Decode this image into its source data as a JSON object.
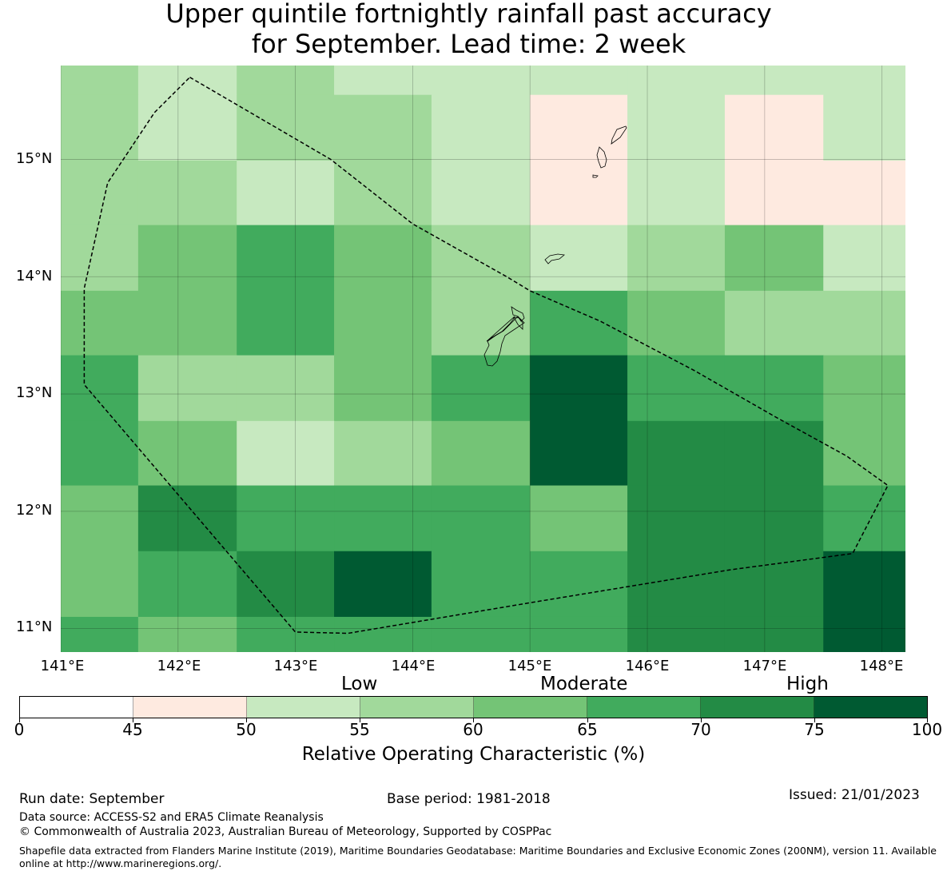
{
  "title": {
    "line1": "Upper quintile fortnightly rainfall past accuracy",
    "line2": "for September. Lead time: 2 week"
  },
  "map": {
    "lon_labels": [
      "141°E",
      "142°E",
      "143°E",
      "144°E",
      "145°E",
      "146°E",
      "147°E",
      "148°E"
    ],
    "lat_labels": [
      "15°N",
      "14°N",
      "13°N",
      "12°N",
      "11°N"
    ],
    "lon_range": [
      141.0,
      148.2
    ],
    "lat_range": [
      10.8,
      15.8
    ],
    "grid_lon_edges": [
      141.0,
      141.66,
      142.5,
      143.33,
      144.16,
      145.0,
      145.83,
      146.66,
      147.5,
      148.2
    ],
    "grid_lat_edges": [
      15.8,
      15.55,
      14.99,
      14.44,
      13.88,
      13.33,
      12.77,
      12.22,
      11.66,
      11.1,
      10.8
    ],
    "roc_cells": [
      [
        57,
        52,
        57,
        52,
        52,
        52,
        52,
        52,
        52
      ],
      [
        57,
        52,
        57,
        57,
        52,
        47,
        52,
        47,
        52
      ],
      [
        57,
        57,
        52,
        57,
        52,
        47,
        52,
        47,
        47
      ],
      [
        57,
        62,
        67,
        62,
        57,
        52,
        57,
        62,
        52
      ],
      [
        62,
        62,
        67,
        62,
        57,
        67,
        62,
        57,
        57
      ],
      [
        67,
        57,
        57,
        62,
        67,
        78,
        67,
        67,
        62
      ],
      [
        67,
        62,
        52,
        57,
        62,
        78,
        72,
        72,
        62
      ],
      [
        62,
        72,
        67,
        67,
        67,
        62,
        72,
        72,
        67
      ],
      [
        62,
        67,
        72,
        78,
        67,
        67,
        72,
        72,
        78
      ],
      [
        67,
        62,
        67,
        67,
        67,
        67,
        72,
        72,
        78
      ]
    ],
    "eez_boundary_lonlat": [
      [
        142.1,
        15.7
      ],
      [
        143.3,
        15.0
      ],
      [
        144.0,
        14.45
      ],
      [
        144.8,
        14.0
      ],
      [
        145.0,
        13.88
      ],
      [
        145.6,
        13.62
      ],
      [
        146.4,
        13.2
      ],
      [
        147.1,
        12.8
      ],
      [
        147.7,
        12.47
      ],
      [
        148.05,
        12.22
      ],
      [
        147.75,
        11.64
      ],
      [
        146.7,
        11.5
      ],
      [
        145.0,
        11.22
      ],
      [
        143.45,
        10.96
      ],
      [
        143.0,
        10.97
      ],
      [
        141.2,
        13.08
      ],
      [
        141.2,
        13.9
      ],
      [
        141.4,
        14.8
      ],
      [
        141.8,
        15.4
      ],
      [
        142.1,
        15.7
      ]
    ]
  },
  "colorbar": {
    "category_labels": {
      "low": "Low",
      "moderate": "Moderate",
      "high": "High"
    },
    "ticks": [
      "0",
      "45",
      "50",
      "55",
      "60",
      "65",
      "70",
      "75",
      "100"
    ],
    "colors": [
      "#ffffff",
      "#feeae0",
      "#c7e9c0",
      "#a1d99b",
      "#74c476",
      "#41ab5d",
      "#238b45",
      "#005a32"
    ],
    "label": "Relative Operating Characteristic (%)"
  },
  "footer": {
    "run_date": "Run date: September",
    "base_period": "Base period: 1981-2018",
    "issued": "Issued: 21/01/2023",
    "data_source": "Data source: ACCESS-S2 and ERA5 Climate Reanalysis",
    "copyright": "© Commonwealth of Australia 2023, Australian Bureau of Meteorology, Supported by COSPPac",
    "shapefile": "Shapefile data extracted from Flanders Marine Institute (2019), Maritime Boundaries Geodatabase: Maritime Boundaries and Exclusive Economic Zones (200NM), version 11. Available online at http://www.marineregions.org/."
  }
}
